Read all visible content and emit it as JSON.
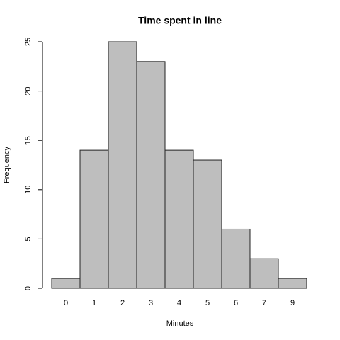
{
  "chart_data": {
    "type": "bar",
    "title": "Time spent in line",
    "x_label": "Minutes",
    "y_label": "Frequency",
    "categories": [
      "0",
      "1",
      "2",
      "3",
      "4",
      "5",
      "6",
      "7",
      "9"
    ],
    "values": [
      1,
      14,
      25,
      23,
      14,
      13,
      6,
      3,
      1
    ],
    "color": "#bebebe",
    "ylim": [
      0,
      25
    ],
    "yticks": [
      0,
      5,
      10,
      15,
      20,
      25
    ]
  }
}
